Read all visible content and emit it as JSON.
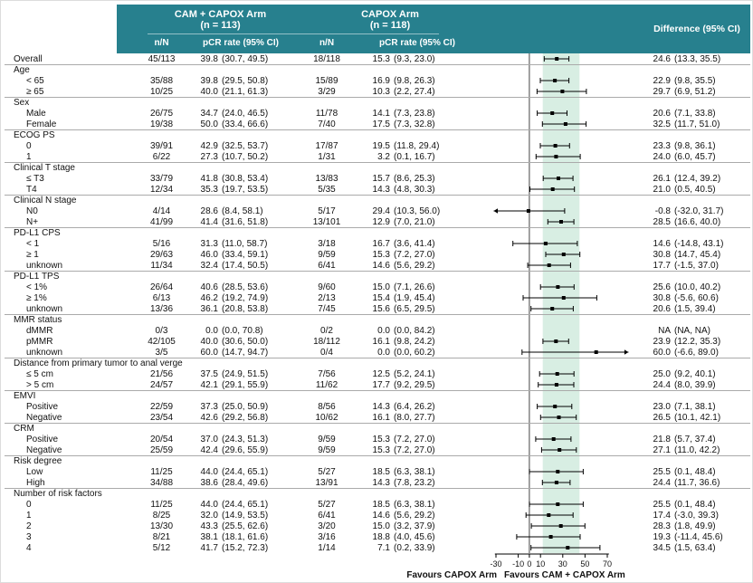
{
  "colors": {
    "header_bg": "#27808E",
    "band": "#D8EEE3",
    "separator": "#AAAAAA",
    "reference_line": "#444444",
    "bar": "#000000"
  },
  "header": {
    "arm1_name": "CAM + CAPOX Arm",
    "arm1_n": "(n = 113)",
    "arm2_name": "CAPOX Arm",
    "arm2_n": "(n = 118)",
    "col_n": "n/N",
    "col_pcr": "pCR rate (95% CI)",
    "col_diff": "Difference (95% CI)"
  },
  "chart_data": {
    "type": "forest",
    "axis": {
      "ticks": [
        -30,
        -10,
        0,
        10,
        30,
        50,
        70
      ],
      "xlim": [
        -32,
        95
      ],
      "reference_line_x": 0,
      "shaded_band": {
        "from": 12,
        "to": 45
      },
      "favours_left": "Favours CAPOX Arm",
      "favours_right": "Favours CAM + CAPOX Arm"
    },
    "rows": [
      {
        "type": "data",
        "indent": 0,
        "label": "Overall",
        "arm1_nN": "45/113",
        "arm1_rate": "39.8",
        "arm1_ci": "(30.7, 49.5)",
        "arm2_nN": "18/118",
        "arm2_rate": "15.3",
        "arm2_ci": "(9.3, 23.0)",
        "diff_rate": "24.6",
        "diff_ci": "(13.3, 35.5)",
        "diff_est": 24.6,
        "diff_lo": 13.3,
        "diff_hi": 35.5
      },
      {
        "type": "group",
        "label": "Age"
      },
      {
        "type": "data",
        "indent": 1,
        "label": "< 65",
        "arm1_nN": "35/88",
        "arm1_rate": "39.8",
        "arm1_ci": "(29.5, 50.8)",
        "arm2_nN": "15/89",
        "arm2_rate": "16.9",
        "arm2_ci": "(9.8, 26.3)",
        "diff_rate": "22.9",
        "diff_ci": "(9.8, 35.5)",
        "diff_est": 22.9,
        "diff_lo": 9.8,
        "diff_hi": 35.5
      },
      {
        "type": "data",
        "indent": 1,
        "label": "≥ 65",
        "arm1_nN": "10/25",
        "arm1_rate": "40.0",
        "arm1_ci": "(21.1, 61.3)",
        "arm2_nN": "3/29",
        "arm2_rate": "10.3",
        "arm2_ci": "(2.2, 27.4)",
        "diff_rate": "29.7",
        "diff_ci": "(6.9, 51.2)",
        "diff_est": 29.7,
        "diff_lo": 6.9,
        "diff_hi": 51.2
      },
      {
        "type": "group",
        "label": "Sex"
      },
      {
        "type": "data",
        "indent": 1,
        "label": "Male",
        "arm1_nN": "26/75",
        "arm1_rate": "34.7",
        "arm1_ci": "(24.0, 46.5)",
        "arm2_nN": "11/78",
        "arm2_rate": "14.1",
        "arm2_ci": "(7.3, 23.8)",
        "diff_rate": "20.6",
        "diff_ci": "(7.1, 33.8)",
        "diff_est": 20.6,
        "diff_lo": 7.1,
        "diff_hi": 33.8
      },
      {
        "type": "data",
        "indent": 1,
        "label": "Female",
        "arm1_nN": "19/38",
        "arm1_rate": "50.0",
        "arm1_ci": "(33.4, 66.6)",
        "arm2_nN": "7/40",
        "arm2_rate": "17.5",
        "arm2_ci": "(7.3, 32.8)",
        "diff_rate": "32.5",
        "diff_ci": "(11.7, 51.0)",
        "diff_est": 32.5,
        "diff_lo": 11.7,
        "diff_hi": 51.0
      },
      {
        "type": "group",
        "label": "ECOG PS"
      },
      {
        "type": "data",
        "indent": 1,
        "label": "0",
        "arm1_nN": "39/91",
        "arm1_rate": "42.9",
        "arm1_ci": "(32.5, 53.7)",
        "arm2_nN": "17/87",
        "arm2_rate": "19.5",
        "arm2_ci": "(11.8, 29.4)",
        "diff_rate": "23.3",
        "diff_ci": "(9.8, 36.1)",
        "diff_est": 23.3,
        "diff_lo": 9.8,
        "diff_hi": 36.1
      },
      {
        "type": "data",
        "indent": 1,
        "label": "1",
        "arm1_nN": "6/22",
        "arm1_rate": "27.3",
        "arm1_ci": "(10.7, 50.2)",
        "arm2_nN": "1/31",
        "arm2_rate": "3.2",
        "arm2_ci": "(0.1, 16.7)",
        "diff_rate": "24.0",
        "diff_ci": "(6.0, 45.7)",
        "diff_est": 24.0,
        "diff_lo": 6.0,
        "diff_hi": 45.7
      },
      {
        "type": "group",
        "label": "Clinical T stage"
      },
      {
        "type": "data",
        "indent": 1,
        "label": "≤ T3",
        "arm1_nN": "33/79",
        "arm1_rate": "41.8",
        "arm1_ci": "(30.8, 53.4)",
        "arm2_nN": "13/83",
        "arm2_rate": "15.7",
        "arm2_ci": "(8.6, 25.3)",
        "diff_rate": "26.1",
        "diff_ci": "(12.4, 39.2)",
        "diff_est": 26.1,
        "diff_lo": 12.4,
        "diff_hi": 39.2
      },
      {
        "type": "data",
        "indent": 1,
        "label": "T4",
        "arm1_nN": "12/34",
        "arm1_rate": "35.3",
        "arm1_ci": "(19.7, 53.5)",
        "arm2_nN": "5/35",
        "arm2_rate": "14.3",
        "arm2_ci": "(4.8, 30.3)",
        "diff_rate": "21.0",
        "diff_ci": "(0.5, 40.5)",
        "diff_est": 21.0,
        "diff_lo": 0.5,
        "diff_hi": 40.5
      },
      {
        "type": "group",
        "label": "Clinical N stage"
      },
      {
        "type": "data",
        "indent": 1,
        "label": "N0",
        "arm1_nN": "4/14",
        "arm1_rate": "28.6",
        "arm1_ci": "(8.4, 58.1)",
        "arm2_nN": "5/17",
        "arm2_rate": "29.4",
        "arm2_ci": "(10.3, 56.0)",
        "diff_rate": "-0.8",
        "diff_ci": "(-32.0, 31.7)",
        "diff_est": -0.8,
        "diff_lo": -32.0,
        "diff_hi": 31.7
      },
      {
        "type": "data",
        "indent": 1,
        "label": "N+",
        "arm1_nN": "41/99",
        "arm1_rate": "41.4",
        "arm1_ci": "(31.6, 51.8)",
        "arm2_nN": "13/101",
        "arm2_rate": "12.9",
        "arm2_ci": "(7.0, 21.0)",
        "diff_rate": "28.5",
        "diff_ci": "(16.6, 40.0)",
        "diff_est": 28.5,
        "diff_lo": 16.6,
        "diff_hi": 40.0
      },
      {
        "type": "group",
        "label": "PD-L1 CPS"
      },
      {
        "type": "data",
        "indent": 1,
        "label": "< 1",
        "arm1_nN": "5/16",
        "arm1_rate": "31.3",
        "arm1_ci": "(11.0, 58.7)",
        "arm2_nN": "3/18",
        "arm2_rate": "16.7",
        "arm2_ci": "(3.6, 41.4)",
        "diff_rate": "14.6",
        "diff_ci": "(-14.8, 43.1)",
        "diff_est": 14.6,
        "diff_lo": -14.8,
        "diff_hi": 43.1
      },
      {
        "type": "data",
        "indent": 1,
        "label": "≥ 1",
        "arm1_nN": "29/63",
        "arm1_rate": "46.0",
        "arm1_ci": "(33.4, 59.1)",
        "arm2_nN": "9/59",
        "arm2_rate": "15.3",
        "arm2_ci": "(7.2, 27.0)",
        "diff_rate": "30.8",
        "diff_ci": "(14.7, 45.4)",
        "diff_est": 30.8,
        "diff_lo": 14.7,
        "diff_hi": 45.4
      },
      {
        "type": "data",
        "indent": 1,
        "label": "unknown",
        "arm1_nN": "11/34",
        "arm1_rate": "32.4",
        "arm1_ci": "(17.4, 50.5)",
        "arm2_nN": "6/41",
        "arm2_rate": "14.6",
        "arm2_ci": "(5.6, 29.2)",
        "diff_rate": "17.7",
        "diff_ci": "(-1.5, 37.0)",
        "diff_est": 17.7,
        "diff_lo": -1.5,
        "diff_hi": 37.0
      },
      {
        "type": "group",
        "label": "PD-L1 TPS"
      },
      {
        "type": "data",
        "indent": 1,
        "label": "< 1%",
        "arm1_nN": "26/64",
        "arm1_rate": "40.6",
        "arm1_ci": "(28.5, 53.6)",
        "arm2_nN": "9/60",
        "arm2_rate": "15.0",
        "arm2_ci": "(7.1, 26.6)",
        "diff_rate": "25.6",
        "diff_ci": "(10.0, 40.2)",
        "diff_est": 25.6,
        "diff_lo": 10.0,
        "diff_hi": 40.2
      },
      {
        "type": "data",
        "indent": 1,
        "label": "≥ 1%",
        "arm1_nN": "6/13",
        "arm1_rate": "46.2",
        "arm1_ci": "(19.2, 74.9)",
        "arm2_nN": "2/13",
        "arm2_rate": "15.4",
        "arm2_ci": "(1.9, 45.4)",
        "diff_rate": "30.8",
        "diff_ci": "(-5.6, 60.6)",
        "diff_est": 30.8,
        "diff_lo": -5.6,
        "diff_hi": 60.6
      },
      {
        "type": "data",
        "indent": 1,
        "label": "unknown",
        "arm1_nN": "13/36",
        "arm1_rate": "36.1",
        "arm1_ci": "(20.8, 53.8)",
        "arm2_nN": "7/45",
        "arm2_rate": "15.6",
        "arm2_ci": "(6.5, 29.5)",
        "diff_rate": "20.6",
        "diff_ci": "(1.5, 39.4)",
        "diff_est": 20.6,
        "diff_lo": 1.5,
        "diff_hi": 39.4
      },
      {
        "type": "group",
        "label": "MMR status"
      },
      {
        "type": "data",
        "indent": 1,
        "label": "dMMR",
        "arm1_nN": "0/3",
        "arm1_rate": "0.0",
        "arm1_ci": "(0.0, 70.8)",
        "arm2_nN": "0/2",
        "arm2_rate": "0.0",
        "arm2_ci": "(0.0, 84.2)",
        "diff_rate": "NA",
        "diff_ci": "(NA, NA)",
        "diff_est": null,
        "diff_lo": null,
        "diff_hi": null
      },
      {
        "type": "data",
        "indent": 1,
        "label": "pMMR",
        "arm1_nN": "42/105",
        "arm1_rate": "40.0",
        "arm1_ci": "(30.6, 50.0)",
        "arm2_nN": "18/112",
        "arm2_rate": "16.1",
        "arm2_ci": "(9.8, 24.2)",
        "diff_rate": "23.9",
        "diff_ci": "(12.2, 35.3)",
        "diff_est": 23.9,
        "diff_lo": 12.2,
        "diff_hi": 35.3
      },
      {
        "type": "data",
        "indent": 1,
        "label": "unknown",
        "arm1_nN": "3/5",
        "arm1_rate": "60.0",
        "arm1_ci": "(14.7, 94.7)",
        "arm2_nN": "0/4",
        "arm2_rate": "0.0",
        "arm2_ci": "(0.0, 60.2)",
        "diff_rate": "60.0",
        "diff_ci": "(-6.6, 89.0)",
        "diff_est": 60.0,
        "diff_lo": -6.6,
        "diff_hi": 89.0
      },
      {
        "type": "group",
        "label": "Distance from primary tumor to anal verge"
      },
      {
        "type": "data",
        "indent": 1,
        "label": "≤ 5 cm",
        "arm1_nN": "21/56",
        "arm1_rate": "37.5",
        "arm1_ci": "(24.9, 51.5)",
        "arm2_nN": "7/56",
        "arm2_rate": "12.5",
        "arm2_ci": "(5.2, 24.1)",
        "diff_rate": "25.0",
        "diff_ci": "(9.2, 40.1)",
        "diff_est": 25.0,
        "diff_lo": 9.2,
        "diff_hi": 40.1
      },
      {
        "type": "data",
        "indent": 1,
        "label": "> 5 cm",
        "arm1_nN": "24/57",
        "arm1_rate": "42.1",
        "arm1_ci": "(29.1, 55.9)",
        "arm2_nN": "11/62",
        "arm2_rate": "17.7",
        "arm2_ci": "(9.2, 29.5)",
        "diff_rate": "24.4",
        "diff_ci": "(8.0, 39.9)",
        "diff_est": 24.4,
        "diff_lo": 8.0,
        "diff_hi": 39.9
      },
      {
        "type": "group",
        "label": "EMVI"
      },
      {
        "type": "data",
        "indent": 1,
        "label": "Positive",
        "arm1_nN": "22/59",
        "arm1_rate": "37.3",
        "arm1_ci": "(25.0, 50.9)",
        "arm2_nN": "8/56",
        "arm2_rate": "14.3",
        "arm2_ci": "(6.4, 26.2)",
        "diff_rate": "23.0",
        "diff_ci": "(7.1, 38.1)",
        "diff_est": 23.0,
        "diff_lo": 7.1,
        "diff_hi": 38.1
      },
      {
        "type": "data",
        "indent": 1,
        "label": "Negative",
        "arm1_nN": "23/54",
        "arm1_rate": "42.6",
        "arm1_ci": "(29.2, 56.8)",
        "arm2_nN": "10/62",
        "arm2_rate": "16.1",
        "arm2_ci": "(8.0, 27.7)",
        "diff_rate": "26.5",
        "diff_ci": "(10.1, 42.1)",
        "diff_est": 26.5,
        "diff_lo": 10.1,
        "diff_hi": 42.1
      },
      {
        "type": "group",
        "label": "CRM"
      },
      {
        "type": "data",
        "indent": 1,
        "label": "Positive",
        "arm1_nN": "20/54",
        "arm1_rate": "37.0",
        "arm1_ci": "(24.3, 51.3)",
        "arm2_nN": "9/59",
        "arm2_rate": "15.3",
        "arm2_ci": "(7.2, 27.0)",
        "diff_rate": "21.8",
        "diff_ci": "(5.7, 37.4)",
        "diff_est": 21.8,
        "diff_lo": 5.7,
        "diff_hi": 37.4
      },
      {
        "type": "data",
        "indent": 1,
        "label": "Negative",
        "arm1_nN": "25/59",
        "arm1_rate": "42.4",
        "arm1_ci": "(29.6, 55.9)",
        "arm2_nN": "9/59",
        "arm2_rate": "15.3",
        "arm2_ci": "(7.2, 27.0)",
        "diff_rate": "27.1",
        "diff_ci": "(11.0, 42.2)",
        "diff_est": 27.1,
        "diff_lo": 11.0,
        "diff_hi": 42.2
      },
      {
        "type": "group",
        "label": "Risk degree"
      },
      {
        "type": "data",
        "indent": 1,
        "label": "Low",
        "arm1_nN": "11/25",
        "arm1_rate": "44.0",
        "arm1_ci": "(24.4, 65.1)",
        "arm2_nN": "5/27",
        "arm2_rate": "18.5",
        "arm2_ci": "(6.3, 38.1)",
        "diff_rate": "25.5",
        "diff_ci": "(0.1, 48.4)",
        "diff_est": 25.5,
        "diff_lo": 0.1,
        "diff_hi": 48.4
      },
      {
        "type": "data",
        "indent": 1,
        "label": "High",
        "arm1_nN": "34/88",
        "arm1_rate": "38.6",
        "arm1_ci": "(28.4, 49.6)",
        "arm2_nN": "13/91",
        "arm2_rate": "14.3",
        "arm2_ci": "(7.8, 23.2)",
        "diff_rate": "24.4",
        "diff_ci": "(11.7, 36.6)",
        "diff_est": 24.4,
        "diff_lo": 11.7,
        "diff_hi": 36.6
      },
      {
        "type": "group",
        "label": "Number of risk factors"
      },
      {
        "type": "data",
        "indent": 1,
        "label": "0",
        "arm1_nN": "11/25",
        "arm1_rate": "44.0",
        "arm1_ci": "(24.4, 65.1)",
        "arm2_nN": "5/27",
        "arm2_rate": "18.5",
        "arm2_ci": "(6.3, 38.1)",
        "diff_rate": "25.5",
        "diff_ci": "(0.1, 48.4)",
        "diff_est": 25.5,
        "diff_lo": 0.1,
        "diff_hi": 48.4
      },
      {
        "type": "data",
        "indent": 1,
        "label": "1",
        "arm1_nN": "8/25",
        "arm1_rate": "32.0",
        "arm1_ci": "(14.9, 53.5)",
        "arm2_nN": "6/41",
        "arm2_rate": "14.6",
        "arm2_ci": "(5.6, 29.2)",
        "diff_rate": "17.4",
        "diff_ci": "(-3.0, 39.3)",
        "diff_est": 17.4,
        "diff_lo": -3.0,
        "diff_hi": 39.3
      },
      {
        "type": "data",
        "indent": 1,
        "label": "2",
        "arm1_nN": "13/30",
        "arm1_rate": "43.3",
        "arm1_ci": "(25.5, 62.6)",
        "arm2_nN": "3/20",
        "arm2_rate": "15.0",
        "arm2_ci": "(3.2, 37.9)",
        "diff_rate": "28.3",
        "diff_ci": "(1.8, 49.9)",
        "diff_est": 28.3,
        "diff_lo": 1.8,
        "diff_hi": 49.9
      },
      {
        "type": "data",
        "indent": 1,
        "label": "3",
        "arm1_nN": "8/21",
        "arm1_rate": "38.1",
        "arm1_ci": "(18.1, 61.6)",
        "arm2_nN": "3/16",
        "arm2_rate": "18.8",
        "arm2_ci": "(4.0, 45.6)",
        "diff_rate": "19.3",
        "diff_ci": "(-11.4, 45.6)",
        "diff_est": 19.3,
        "diff_lo": -11.4,
        "diff_hi": 45.6
      },
      {
        "type": "data",
        "indent": 1,
        "label": "4",
        "arm1_nN": "5/12",
        "arm1_rate": "41.7",
        "arm1_ci": "(15.2, 72.3)",
        "arm2_nN": "1/14",
        "arm2_rate": "7.1",
        "arm2_ci": "(0.2, 33.9)",
        "diff_rate": "34.5",
        "diff_ci": "(1.5, 63.4)",
        "diff_est": 34.5,
        "diff_lo": 1.5,
        "diff_hi": 63.4
      }
    ]
  }
}
